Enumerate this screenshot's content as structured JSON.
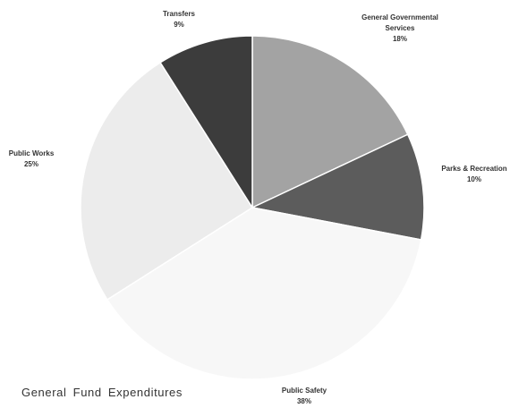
{
  "chart_data": {
    "type": "pie",
    "title": "General Fund Expenditures",
    "categories": [
      "General Governmental Services",
      "Parks & Recreation",
      "Public Safety",
      "Public Works",
      "Transfers"
    ],
    "values": [
      18,
      10,
      38,
      25,
      9
    ],
    "value_labels": [
      "18%",
      "10%",
      "38%",
      "25%",
      "9%"
    ],
    "colors": [
      "#a3a3a3",
      "#5c5c5c",
      "#f7f7f7",
      "#ececec",
      "#3c3c3c"
    ]
  }
}
